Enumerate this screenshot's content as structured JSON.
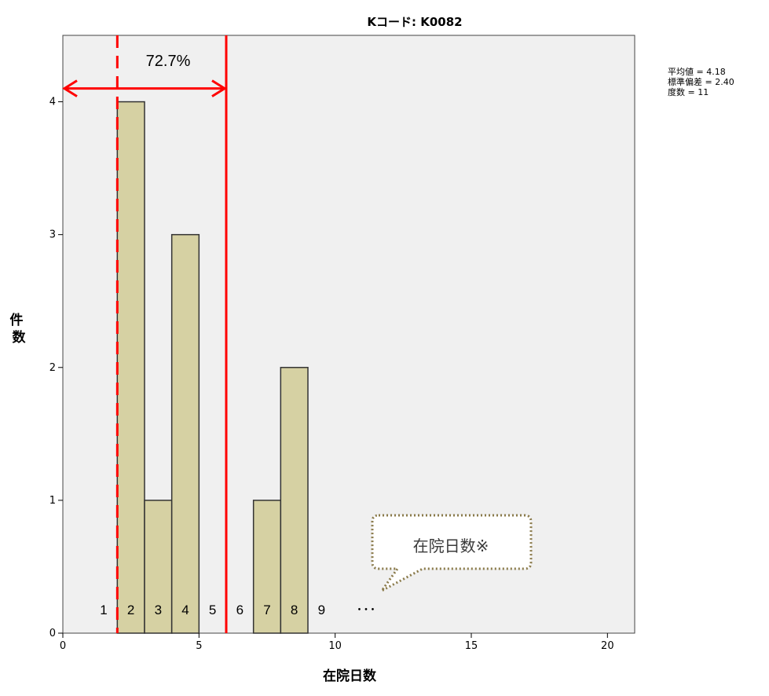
{
  "chart_data": {
    "type": "bar",
    "title": "Kコード: K0082",
    "xlabel": "在院日数",
    "ylabel": "件数",
    "xlim": [
      0,
      21
    ],
    "ylim": [
      0,
      4.5
    ],
    "x_ticks": [
      0,
      5,
      10,
      15,
      20
    ],
    "y_ticks": [
      0,
      1,
      2,
      3,
      4
    ],
    "bin_width": 1,
    "bins": [
      {
        "x0": 2,
        "x1": 3,
        "count": 4
      },
      {
        "x0": 3,
        "x1": 4,
        "count": 1
      },
      {
        "x0": 4,
        "x1": 5,
        "count": 3
      },
      {
        "x0": 7,
        "x1": 8,
        "count": 1
      },
      {
        "x0": 8,
        "x1": 9,
        "count": 2
      }
    ],
    "bar_color": "#d6d1a3",
    "bar_edge": "#333333",
    "plot_background": "#f0f0f0",
    "stats": [
      "平均値 = 4.18",
      "標準偏差 = 2.40",
      "度数 = 11"
    ],
    "annotations": {
      "color": "#ff0000",
      "dashed_line_x": 2,
      "solid_line_x": 6,
      "range_arrow_from_x": 0,
      "range_arrow_to_x": 6,
      "range_arrow_y": 4.1,
      "range_text": "72.7%",
      "bin_numbers": [
        "1",
        "2",
        "3",
        "4",
        "5",
        "6",
        "7",
        "8",
        "9"
      ],
      "ellipsis": "･･･",
      "callout_text": "在院日数※",
      "callout_border": "#8a7a4a"
    }
  }
}
